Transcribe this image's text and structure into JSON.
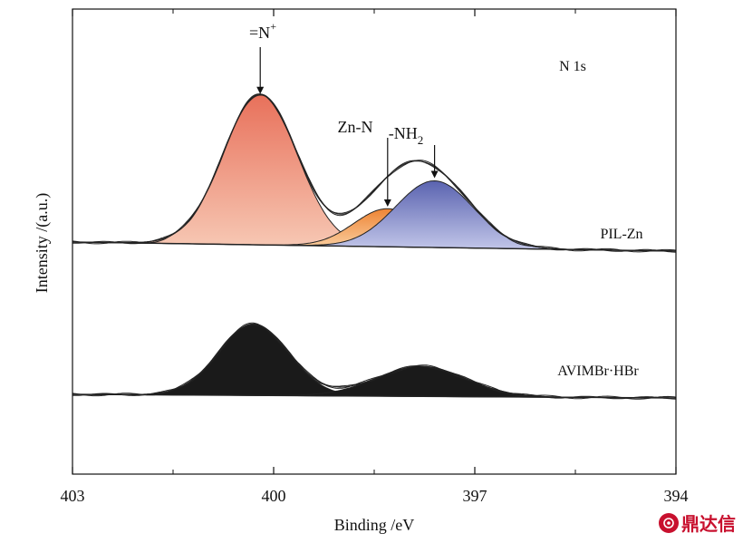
{
  "chart_data": {
    "type": "area",
    "xlabel": "Binding /eV",
    "ylabel": "Intensity /(a.u.)",
    "xlim": [
      403,
      394
    ],
    "x_reversed": true,
    "xticks": [
      403,
      400,
      397,
      394
    ],
    "x_minor_ticks": [
      401.5,
      398.5,
      395.5
    ],
    "y_ticks_visible": false,
    "grid": false,
    "panel_label": "N 1s",
    "panels": [
      {
        "name": "PIL-Zn",
        "baseline": 0.35,
        "peaks": [
          {
            "label": "=N+",
            "center": 400.2,
            "height": 0.95,
            "color_top": "#e8705a",
            "color_bottom": "#f7cab6"
          },
          {
            "label": "Zn-N",
            "center": 398.3,
            "height": 0.24,
            "color_top": "#ee8434",
            "color_bottom": "#fbd4a8"
          },
          {
            "label": "-NH2",
            "center": 397.6,
            "height": 0.42,
            "color_top": "#5a63b0",
            "color_bottom": "#c4c8ea"
          }
        ]
      },
      {
        "name": "AVIMBr·HBr",
        "baseline": 0.0,
        "peaks": [
          {
            "label": "",
            "center": 400.3,
            "height": 0.45,
            "color_top": "#1a1a1a",
            "color_bottom": "#1a1a1a"
          },
          {
            "label": "",
            "center": 397.8,
            "height": 0.19,
            "color_top": "#1a1a1a",
            "color_bottom": "#1a1a1a"
          }
        ]
      }
    ],
    "annotations": [
      {
        "text": "=N",
        "sup": "+",
        "points_to": 400.2
      },
      {
        "text": "Zn-N",
        "points_to": 398.3
      },
      {
        "text": "-NH",
        "sub": "2",
        "points_to": 397.6
      }
    ],
    "colors": {
      "axis": "#111111",
      "envelope": "#222222"
    }
  },
  "watermark": {
    "text": "鼎达信",
    "color": "#c8102e"
  }
}
